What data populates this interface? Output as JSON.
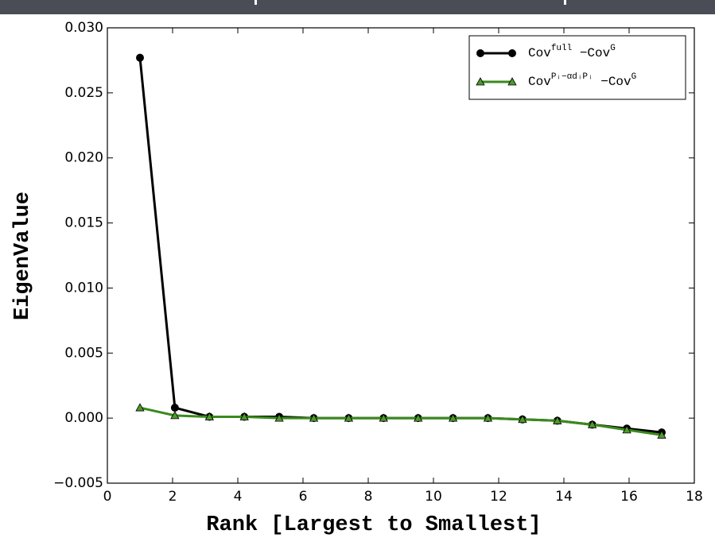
{
  "chart_data": {
    "type": "line",
    "xlabel": "Rank [Largest to Smallest]",
    "ylabel": "EigenValue",
    "x": [
      1,
      2.07,
      3.13,
      4.2,
      5.27,
      6.33,
      7.4,
      8.47,
      9.53,
      10.6,
      11.67,
      12.73,
      13.8,
      14.87,
      15.93,
      17
    ],
    "series": [
      {
        "name": [
          "Cov",
          "full",
          " −Cov",
          "G"
        ],
        "color": "#000000",
        "marker": "circle",
        "values": [
          0.0277,
          0.0008,
          0.0001,
          0.0001,
          0.0001,
          0.0,
          0.0,
          0.0,
          0.0,
          0.0,
          0.0,
          -0.0001,
          -0.0002,
          -0.0005,
          -0.0008,
          -0.0011
        ]
      },
      {
        "name": [
          "Cov",
          "Pᵢ−αdᵢPᵢ",
          " −Cov",
          "G"
        ],
        "color": "#3a8a1c",
        "marker": "triangle",
        "values": [
          0.0008,
          0.0002,
          0.0001,
          0.0001,
          0.0,
          0.0,
          0.0,
          0.0,
          0.0,
          0.0,
          0.0,
          -0.0001,
          -0.0002,
          -0.0005,
          -0.0009,
          -0.0013
        ]
      }
    ],
    "xlim": [
      0,
      18
    ],
    "xticks": [
      0,
      2,
      4,
      6,
      8,
      10,
      12,
      14,
      16,
      18
    ],
    "ylim": [
      -0.005,
      0.03
    ],
    "yticks": [
      {
        "value": -0.005,
        "label": "−0.005"
      },
      {
        "value": 0,
        "label": "0.000"
      },
      {
        "value": 0.005,
        "label": "0.005"
      },
      {
        "value": 0.01,
        "label": "0.010"
      },
      {
        "value": 0.015,
        "label": "0.015"
      },
      {
        "value": 0.02,
        "label": "0.020"
      },
      {
        "value": 0.025,
        "label": "0.025"
      },
      {
        "value": 0.03,
        "label": "0.030"
      }
    ],
    "legend": "upper right",
    "grid": false
  }
}
